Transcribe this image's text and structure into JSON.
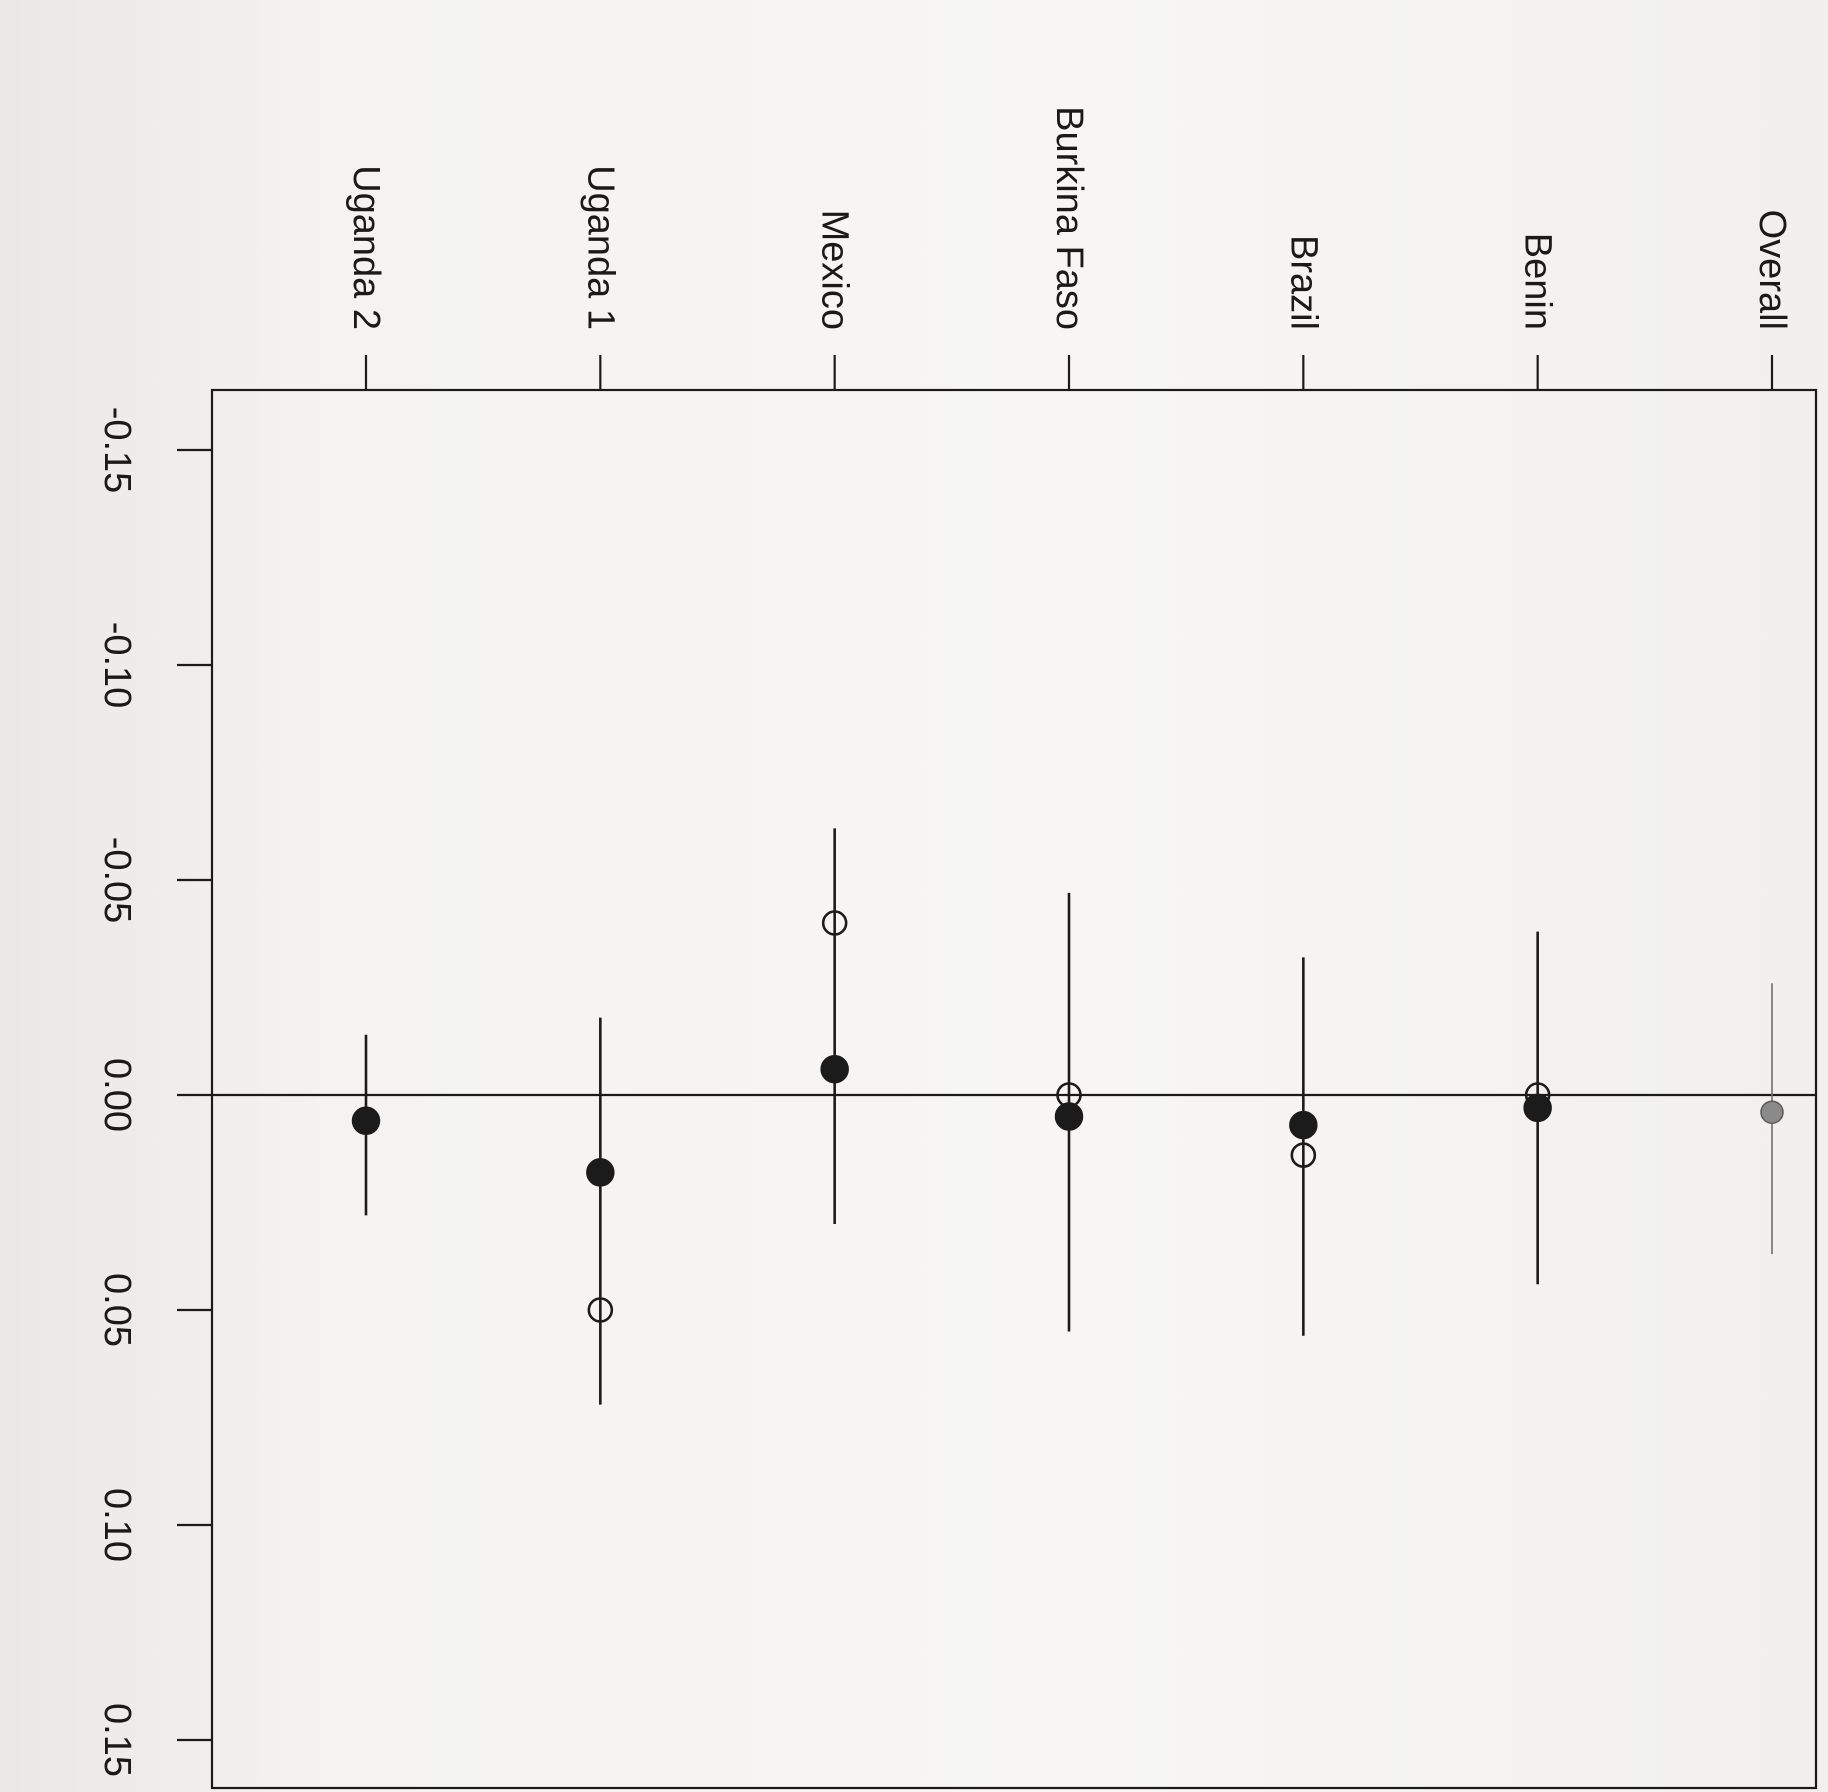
{
  "chart_data": {
    "type": "scatter",
    "orientation": "rotated 90 degrees clockwise",
    "title": "",
    "xlabel": "",
    "ylabel": "",
    "value_axis": {
      "range": [
        -0.15,
        0.15
      ],
      "ticks": [
        -0.15,
        -0.1,
        -0.05,
        0.0,
        0.05,
        0.1,
        0.15
      ],
      "tick_labels": [
        "-0.15",
        "-0.10",
        "-0.05",
        "0.00",
        "0.05",
        "0.10",
        "0.15"
      ],
      "zero_line": true
    },
    "categories": [
      "Overall",
      "Benin",
      "Brazil",
      "Burkina Faso",
      "Mexico",
      "Uganda 1",
      "Uganda 2"
    ],
    "filled_estimate": [
      0.004,
      0.003,
      0.007,
      0.005,
      -0.006,
      0.018,
      0.006
    ],
    "open_estimate": [
      null,
      0.0,
      0.014,
      0.0,
      -0.04,
      0.05,
      null
    ],
    "interval_low": [
      -0.026,
      -0.038,
      -0.032,
      -0.047,
      -0.062,
      -0.018,
      -0.014
    ],
    "interval_high": [
      0.037,
      0.044,
      0.056,
      0.055,
      0.03,
      0.072,
      0.028
    ],
    "colors": {
      "marker": "#1b1b1b",
      "overall_marker": "#8a8a8a",
      "line": "#1b1b1b",
      "overall_line": "#6e6e6e"
    },
    "grid": false,
    "legend": "none"
  }
}
